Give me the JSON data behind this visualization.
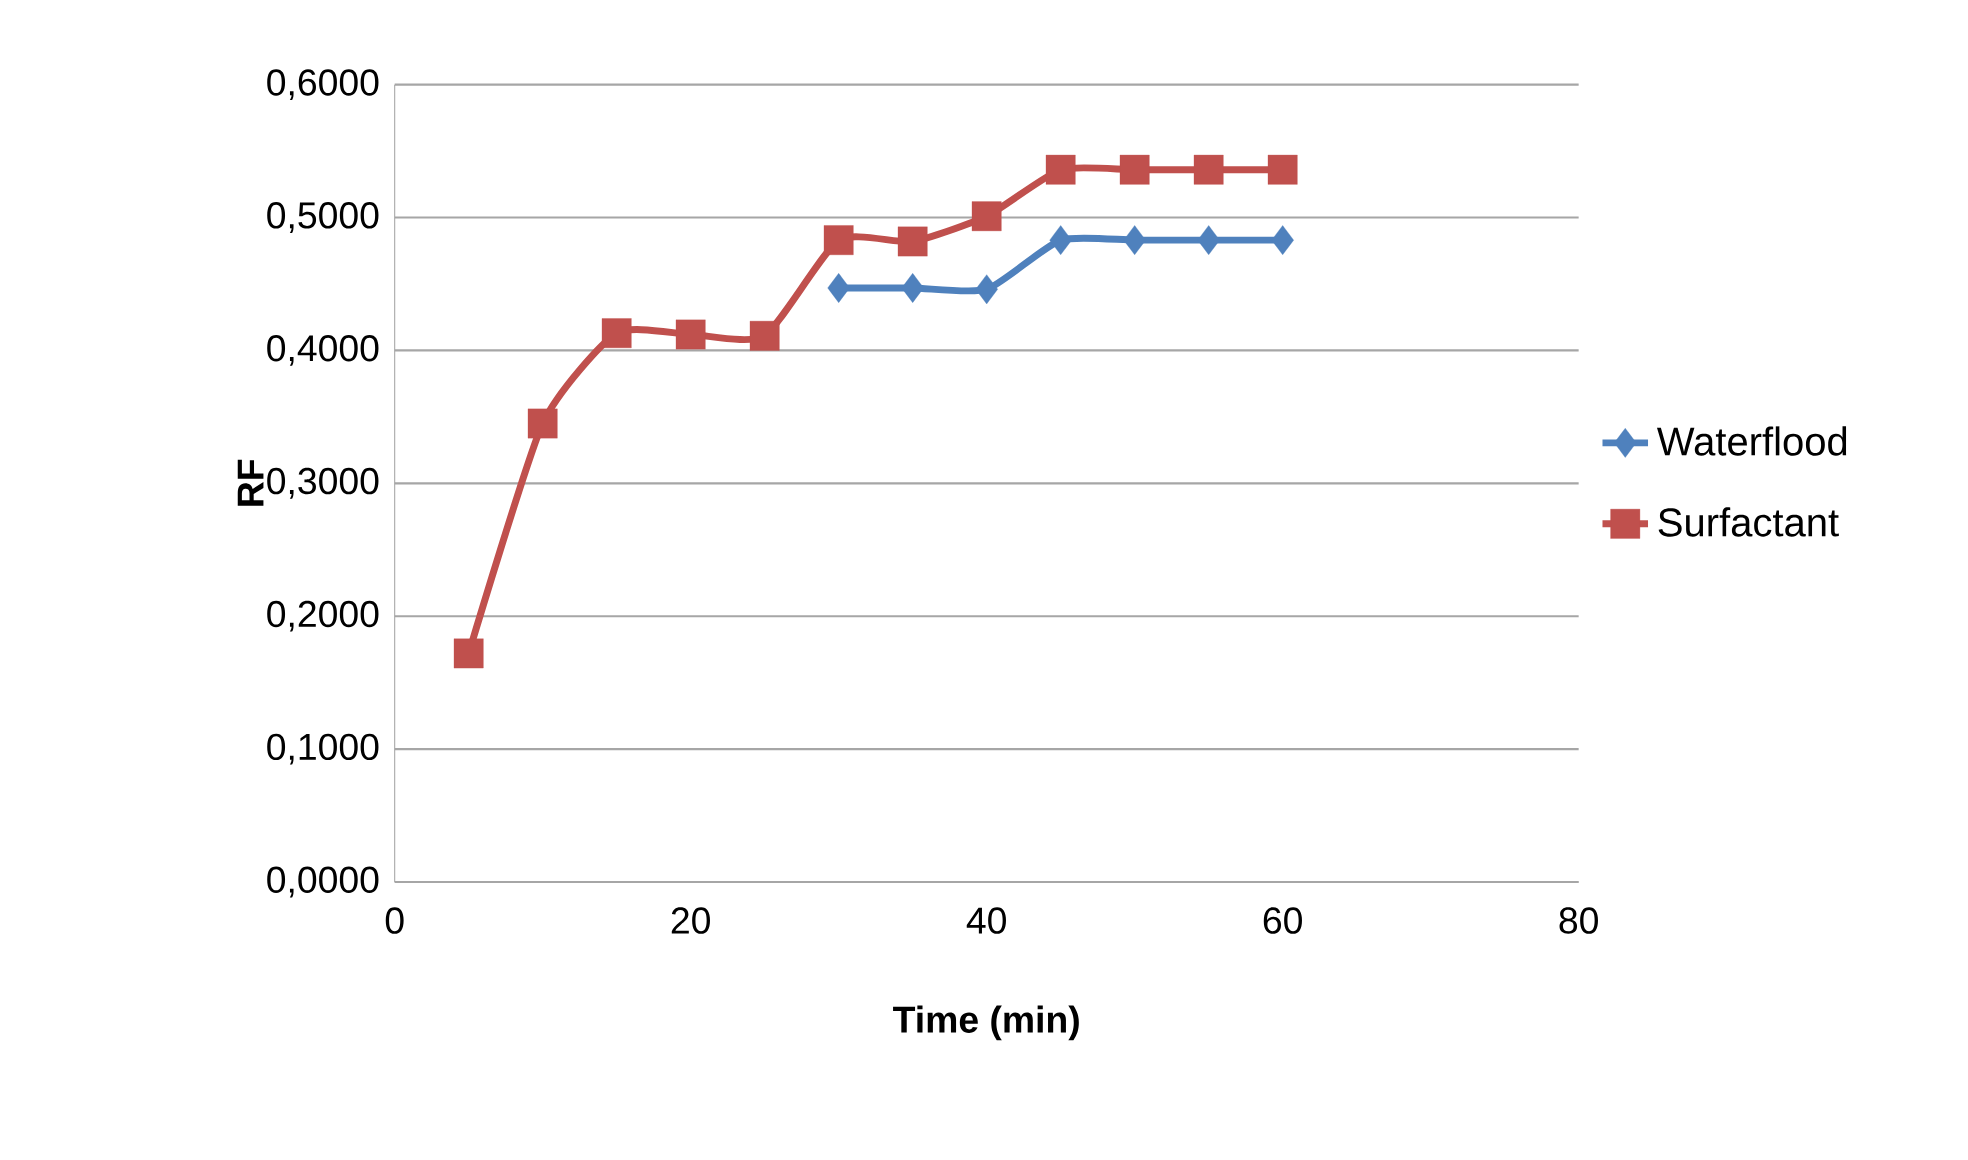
{
  "chart_data": {
    "type": "line",
    "xlabel": "Time (min)",
    "ylabel": "RF",
    "x": [
      5,
      10,
      15,
      20,
      25,
      30,
      35,
      40,
      45,
      50,
      55,
      60
    ],
    "series": [
      {
        "name": "Waterflood",
        "color": "#4f81bd",
        "marker": "diamond",
        "values": [
          null,
          null,
          null,
          null,
          null,
          0.447,
          0.447,
          0.446,
          0.483,
          0.483,
          0.483,
          0.483
        ]
      },
      {
        "name": "Surfactant",
        "color": "#c0504d",
        "marker": "square",
        "values": [
          0.172,
          0.345,
          0.413,
          0.412,
          0.411,
          0.483,
          0.482,
          0.501,
          0.536,
          0.536,
          0.536,
          0.536
        ]
      }
    ],
    "xlim": [
      0,
      80
    ],
    "ylim": [
      0,
      0.6
    ],
    "xticks": [
      0,
      20,
      40,
      60,
      80
    ],
    "yticks": [
      {
        "value": 0,
        "label": "0,0000"
      },
      {
        "value": 0.1,
        "label": "0,1000"
      },
      {
        "value": 0.2,
        "label": "0,2000"
      },
      {
        "value": 0.3,
        "label": "0,3000"
      },
      {
        "value": 0.4,
        "label": "0,4000"
      },
      {
        "value": 0.5,
        "label": "0,5000"
      },
      {
        "value": 0.6,
        "label": "0,6000"
      }
    ],
    "grid": "y",
    "legend": "right",
    "line_style": "solid"
  }
}
